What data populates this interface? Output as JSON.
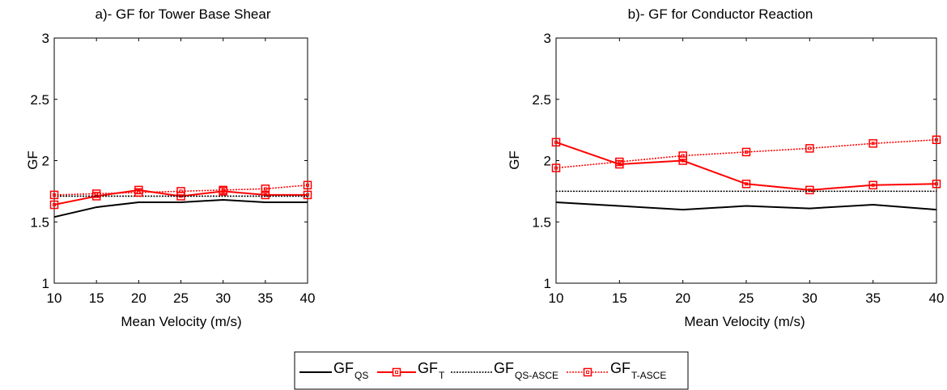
{
  "chart_data": [
    {
      "type": "line",
      "title": "a)- GF for Tower Base Shear",
      "xlabel": "Mean Velocity (m/s)",
      "ylabel": "GF",
      "xlim": [
        10,
        40
      ],
      "ylim": [
        1,
        3
      ],
      "x_ticks": [
        "10",
        "15",
        "20",
        "25",
        "30",
        "35",
        "40"
      ],
      "y_ticks": [
        "1",
        "1.5",
        "2",
        "2.5",
        "3"
      ],
      "x": [
        10,
        15,
        20,
        25,
        30,
        35,
        40
      ],
      "series": [
        {
          "name": "GF_QS",
          "color": "#000000",
          "style": "solid",
          "marker": "none",
          "values": [
            1.54,
            1.62,
            1.66,
            1.66,
            1.68,
            1.66,
            1.66
          ]
        },
        {
          "name": "GF_T",
          "color": "#ff0000",
          "style": "solid",
          "marker": "square",
          "values": [
            1.64,
            1.71,
            1.76,
            1.71,
            1.75,
            1.72,
            1.72
          ]
        },
        {
          "name": "GF_QS-ASCE",
          "color": "#000000",
          "style": "dotted",
          "marker": "none",
          "values": [
            1.71,
            1.71,
            1.71,
            1.71,
            1.71,
            1.71,
            1.71
          ]
        },
        {
          "name": "GF_T-ASCE",
          "color": "#ff0000",
          "style": "dotted",
          "marker": "square",
          "values": [
            1.72,
            1.73,
            1.74,
            1.75,
            1.76,
            1.77,
            1.8
          ]
        }
      ]
    },
    {
      "type": "line",
      "title": "b)- GF for Conductor Reaction",
      "xlabel": "Mean Velocity (m/s)",
      "ylabel": "GF",
      "xlim": [
        10,
        40
      ],
      "ylim": [
        1,
        3
      ],
      "x_ticks": [
        "10",
        "15",
        "20",
        "25",
        "30",
        "35",
        "40"
      ],
      "y_ticks": [
        "1",
        "1.5",
        "2",
        "2.5",
        "3"
      ],
      "x": [
        10,
        15,
        20,
        25,
        30,
        35,
        40
      ],
      "series": [
        {
          "name": "GF_QS",
          "color": "#000000",
          "style": "solid",
          "marker": "none",
          "values": [
            1.66,
            1.63,
            1.6,
            1.63,
            1.61,
            1.64,
            1.6
          ]
        },
        {
          "name": "GF_T",
          "color": "#ff0000",
          "style": "solid",
          "marker": "square",
          "values": [
            2.15,
            1.97,
            2.0,
            1.81,
            1.76,
            1.8,
            1.81
          ]
        },
        {
          "name": "GF_QS-ASCE",
          "color": "#000000",
          "style": "dotted",
          "marker": "none",
          "values": [
            1.75,
            1.75,
            1.75,
            1.75,
            1.75,
            1.75,
            1.75
          ]
        },
        {
          "name": "GF_T-ASCE",
          "color": "#ff0000",
          "style": "dotted",
          "marker": "square",
          "values": [
            1.94,
            1.99,
            2.04,
            2.07,
            2.1,
            2.14,
            2.17
          ]
        }
      ]
    }
  ],
  "legend": {
    "placement": "bottom-center",
    "items": [
      {
        "base": "GF",
        "sub": "QS",
        "color": "#000000",
        "style": "solid",
        "marker": "none"
      },
      {
        "base": "GF",
        "sub": "T",
        "color": "#ff0000",
        "style": "solid",
        "marker": "square"
      },
      {
        "base": "GF",
        "sub": "QS-ASCE",
        "color": "#000000",
        "style": "dotted",
        "marker": "none"
      },
      {
        "base": "GF",
        "sub": "T-ASCE",
        "color": "#ff0000",
        "style": "dotted",
        "marker": "square"
      }
    ]
  }
}
